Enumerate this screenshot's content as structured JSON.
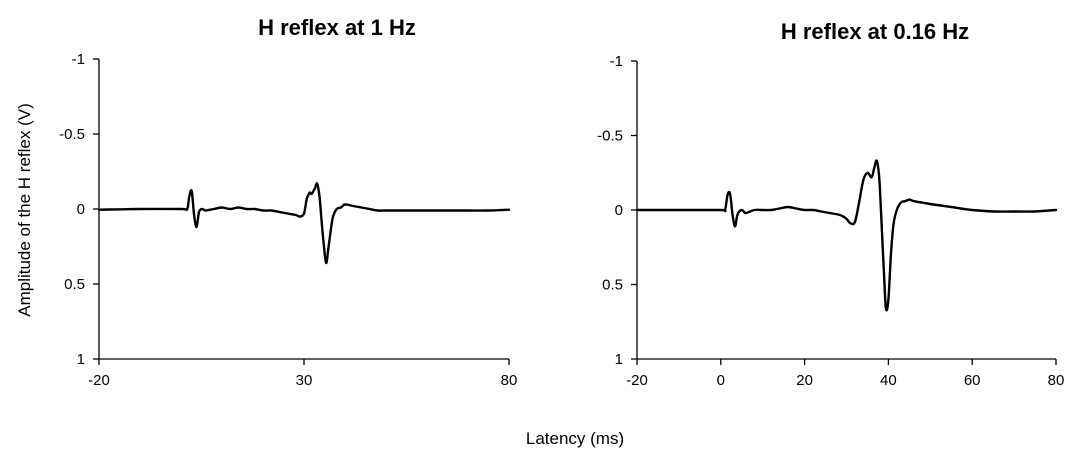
{
  "figure": {
    "ylabel": "Amplitude of the H reflex (V)",
    "xlabel": "Latency (ms)"
  },
  "chart_data": [
    {
      "type": "line",
      "title": "H reflex at 1 Hz",
      "xlim": [
        -20,
        80
      ],
      "ylim": [
        -1,
        1
      ],
      "y_inverted": true,
      "grid": false,
      "xticks": [
        "-20",
        "30",
        "80"
      ],
      "yticks": [
        "-1",
        "-0.5",
        "0",
        "0.5",
        "1"
      ],
      "series": [
        {
          "x": [
            -20,
            -10,
            0,
            1.5,
            2.0,
            2.6,
            3.2,
            3.8,
            4.4,
            5.2,
            6,
            8,
            10,
            12,
            14,
            16,
            18,
            20,
            22,
            24,
            26,
            28,
            29,
            30,
            30.6,
            31.0,
            31.4,
            31.8,
            32.3,
            32.7,
            33.2,
            33.8,
            34.3,
            34.8,
            35.4,
            36.0,
            37.0,
            38.0,
            39.0,
            40,
            42,
            44,
            46,
            48,
            50,
            55,
            60,
            65,
            70,
            75,
            80
          ],
          "y": [
            0.005,
            0.0,
            0.0,
            0.0,
            -0.08,
            -0.12,
            0.04,
            0.12,
            0.02,
            0.0,
            0.01,
            0.0,
            -0.01,
            0.0,
            -0.01,
            0.0,
            0.0,
            0.01,
            0.01,
            0.02,
            0.03,
            0.04,
            0.05,
            0.03,
            -0.06,
            -0.09,
            -0.11,
            -0.1,
            -0.12,
            -0.14,
            -0.17,
            -0.08,
            0.08,
            0.23,
            0.36,
            0.25,
            0.06,
            0.0,
            -0.01,
            -0.03,
            -0.02,
            -0.01,
            0.0,
            0.01,
            0.01,
            0.01,
            0.01,
            0.01,
            0.01,
            0.01,
            0.005
          ]
        }
      ]
    },
    {
      "type": "line",
      "title": "H reflex at 0.16 Hz",
      "xlim": [
        -20,
        80
      ],
      "ylim": [
        -1,
        1
      ],
      "y_inverted": true,
      "grid": false,
      "xticks": [
        "-20",
        "0",
        "20",
        "40",
        "60",
        "80"
      ],
      "yticks": [
        "-1",
        "-0.5",
        "0",
        "0.5",
        "1"
      ],
      "series": [
        {
          "x": [
            -20,
            -10,
            0,
            1.0,
            1.6,
            2.2,
            2.8,
            3.4,
            4.0,
            5.0,
            6,
            8,
            10,
            12,
            14,
            16,
            18,
            20,
            22,
            24,
            26,
            28,
            29,
            30,
            31,
            32,
            33,
            34,
            35,
            36,
            36.6,
            37.2,
            37.8,
            38.3,
            38.9,
            39.4,
            40.0,
            40.6,
            41.2,
            42,
            43,
            44,
            45,
            46,
            48,
            50,
            55,
            60,
            65,
            70,
            75,
            80
          ],
          "y": [
            0.0,
            0.0,
            0.0,
            0.0,
            -0.1,
            -0.11,
            0.03,
            0.11,
            0.03,
            0.0,
            0.02,
            0.0,
            0.0,
            0.0,
            -0.01,
            -0.02,
            -0.01,
            0.0,
            0.0,
            0.01,
            0.02,
            0.03,
            0.04,
            0.06,
            0.09,
            0.08,
            -0.05,
            -0.2,
            -0.25,
            -0.22,
            -0.28,
            -0.33,
            -0.22,
            0.05,
            0.4,
            0.66,
            0.6,
            0.3,
            0.1,
            0.0,
            -0.05,
            -0.06,
            -0.07,
            -0.06,
            -0.05,
            -0.04,
            -0.02,
            0.0,
            0.01,
            0.01,
            0.01,
            0.0
          ]
        }
      ]
    }
  ]
}
